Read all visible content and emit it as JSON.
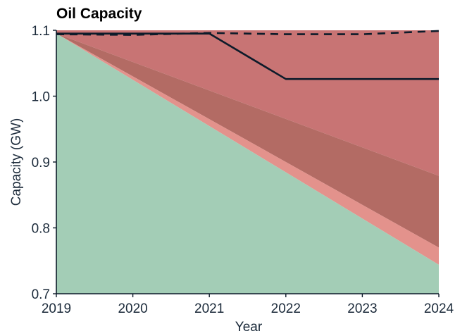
{
  "chart_data": {
    "type": "area",
    "title": "Oil Capacity",
    "xlabel": "Year",
    "ylabel": "Capacity (GW)",
    "x": [
      2019,
      2020,
      2021,
      2022,
      2023,
      2024
    ],
    "xlim": [
      2019,
      2024
    ],
    "ylim": [
      0.7,
      1.1
    ],
    "xticks": [
      "2019",
      "2020",
      "2021",
      "2022",
      "2023",
      "2024"
    ],
    "yticks": [
      "0.7",
      "0.8",
      "0.9",
      "1.0",
      "1.1"
    ],
    "grid": false,
    "legend": "none",
    "areas": [
      {
        "key": "upper-band",
        "color": "#c87474",
        "x": [
          2019,
          2024
        ],
        "lower": [
          1.095,
          0.879
        ],
        "upper": [
          1.1,
          1.1
        ]
      },
      {
        "key": "middle-band",
        "color": "#b36b64",
        "x": [
          2019,
          2024
        ],
        "lower": [
          1.095,
          0.77
        ],
        "upper": [
          1.095,
          0.879
        ]
      },
      {
        "key": "lower-band",
        "color": "#e3928c",
        "x": [
          2019,
          2024
        ],
        "lower": [
          1.095,
          0.744
        ],
        "upper": [
          1.095,
          0.77
        ]
      },
      {
        "key": "baseline-area",
        "color": "#a3cdb6",
        "x": [
          2019,
          2024
        ],
        "lower": [
          0.7,
          0.7
        ],
        "upper": [
          1.095,
          0.744
        ]
      }
    ],
    "series": [
      {
        "key": "solid-line",
        "style": "solid",
        "color": "#0d1b2a",
        "x": [
          2019,
          2020,
          2021,
          2022,
          2023,
          2024
        ],
        "values": [
          1.095,
          1.095,
          1.095,
          1.026,
          1.026,
          1.026
        ]
      },
      {
        "key": "dashed-line",
        "style": "dashed",
        "color": "#0d1b2a",
        "x": [
          2019,
          2020,
          2021,
          2022,
          2023,
          2024
        ],
        "values": [
          1.094,
          1.093,
          1.096,
          1.094,
          1.094,
          1.099
        ]
      }
    ]
  }
}
